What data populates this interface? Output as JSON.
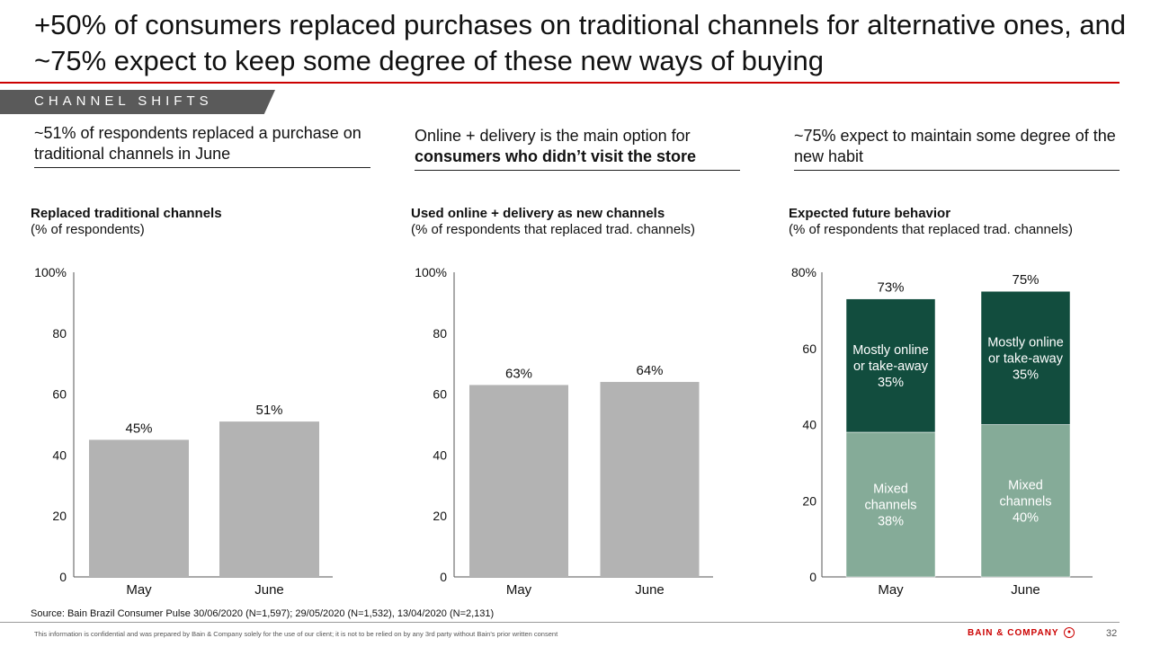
{
  "slide": {
    "title": "+50% of consumers replaced purchases on traditional channels for alternative ones, and ~75% expect to keep some degree of these new ways of buying",
    "section_label": "CHANNEL SHIFTS",
    "source": "Source: Bain Brazil Consumer Pulse 30/06/2020 (N=1,597); 29/05/2020 (N=1,532), 13/04/2020 (N=2,131)",
    "disclaimer": "This information is confidential and was prepared by Bain & Company solely for the use of our client; it is not to be relied on by any 3rd party without Bain's prior written consent",
    "brand": "BAIN & COMPANY",
    "page_number": "32"
  },
  "columns": [
    {
      "headline": "~51% of respondents replaced a purchase on traditional channels in June",
      "chart_title": "Replaced traditional channels",
      "chart_subtitle": "(% of respondents)"
    },
    {
      "headline_plain": "Online + delivery is the main option for",
      "headline_bold": "consumers who didn’t visit the store",
      "chart_title": "Used online + delivery as new channels",
      "chart_subtitle": "(% of respondents that replaced trad. channels)"
    },
    {
      "headline": "~75% expect to maintain some degree of the new habit",
      "chart_title": "Expected future behavior",
      "chart_subtitle": "(% of respondents that replaced trad. channels)"
    }
  ],
  "colors": {
    "accent": "#cc0000",
    "bar_gray": "#b3b3b3",
    "dark_green": "#124d3e",
    "light_green": "#85ab98",
    "tab_gray": "#5a5a5a"
  },
  "chart_data": [
    {
      "type": "bar",
      "title": "Replaced traditional channels",
      "subtitle": "(% of respondents)",
      "categories": [
        "May",
        "June"
      ],
      "values": [
        45,
        51
      ],
      "value_labels": [
        "45%",
        "51%"
      ],
      "ylim": [
        0,
        100
      ],
      "yticks": [
        "0",
        "20",
        "40",
        "60",
        "80",
        "100%"
      ],
      "ytick_values": [
        0,
        20,
        40,
        60,
        80,
        100
      ],
      "grid": false,
      "legend": "none"
    },
    {
      "type": "bar",
      "title": "Used online + delivery as new channels",
      "subtitle": "(% of respondents that replaced trad. channels)",
      "categories": [
        "May",
        "June"
      ],
      "values": [
        63,
        64
      ],
      "value_labels": [
        "63%",
        "64%"
      ],
      "ylim": [
        0,
        100
      ],
      "yticks": [
        "0",
        "20",
        "40",
        "60",
        "80",
        "100%"
      ],
      "ytick_values": [
        0,
        20,
        40,
        60,
        80,
        100
      ],
      "grid": false,
      "legend": "none"
    },
    {
      "type": "bar",
      "stacked": true,
      "title": "Expected future behavior",
      "subtitle": "(% of respondents that replaced trad. channels)",
      "categories": [
        "May",
        "June"
      ],
      "series": [
        {
          "name": "Mixed channels",
          "segment_label": [
            "Mixed",
            "channels"
          ],
          "values": [
            38,
            40
          ],
          "value_labels": [
            "38%",
            "40%"
          ]
        },
        {
          "name": "Mostly online or take-away",
          "segment_label": [
            "Mostly online",
            "or take-away"
          ],
          "values": [
            35,
            35
          ],
          "value_labels": [
            "35%",
            "35%"
          ]
        }
      ],
      "totals": [
        73,
        75
      ],
      "total_labels": [
        "73%",
        "75%"
      ],
      "ylim": [
        0,
        80
      ],
      "yticks": [
        "0",
        "20",
        "40",
        "60",
        "80%"
      ],
      "ytick_values": [
        0,
        20,
        40,
        60,
        80
      ],
      "grid": false,
      "legend": "inline labels on segments"
    }
  ]
}
